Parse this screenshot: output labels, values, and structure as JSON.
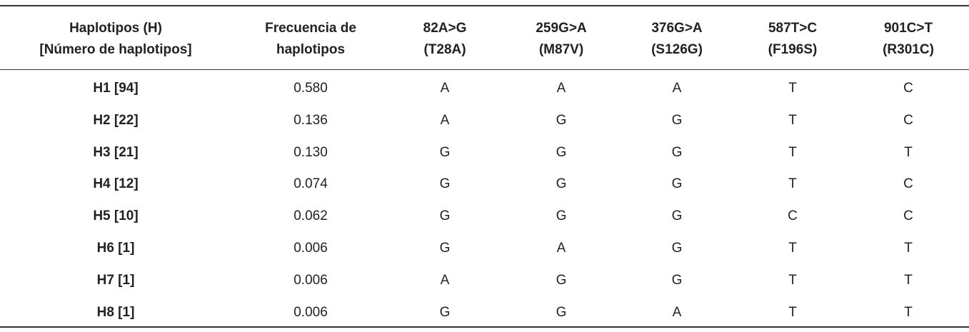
{
  "table": {
    "header": [
      [
        "Haplotipos (H)",
        "[Número de haplotipos]"
      ],
      [
        "Frecuencia de",
        "haplotipos"
      ],
      [
        "82A>G",
        "(T28A)"
      ],
      [
        "259G>A",
        "(M87V)"
      ],
      [
        "376G>A",
        "(S126G)"
      ],
      [
        "587T>C",
        "(F196S)"
      ],
      [
        "901C>T",
        "(R301C)"
      ]
    ],
    "rows": [
      [
        "H1 [94]",
        "0.580",
        "A",
        "A",
        "A",
        "T",
        "C"
      ],
      [
        "H2 [22]",
        "0.136",
        "A",
        "G",
        "G",
        "T",
        "C"
      ],
      [
        "H3 [21]",
        "0.130",
        "G",
        "G",
        "G",
        "T",
        "T"
      ],
      [
        "H4 [12]",
        "0.074",
        "G",
        "G",
        "G",
        "T",
        "C"
      ],
      [
        "H5 [10]",
        "0.062",
        "G",
        "G",
        "G",
        "C",
        "C"
      ],
      [
        "H6 [1]",
        "0.006",
        "G",
        "A",
        "G",
        "T",
        "T"
      ],
      [
        "H7 [1]",
        "0.006",
        "A",
        "G",
        "G",
        "T",
        "T"
      ],
      [
        "H8 [1]",
        "0.006",
        "G",
        "G",
        "A",
        "T",
        "T"
      ]
    ]
  }
}
